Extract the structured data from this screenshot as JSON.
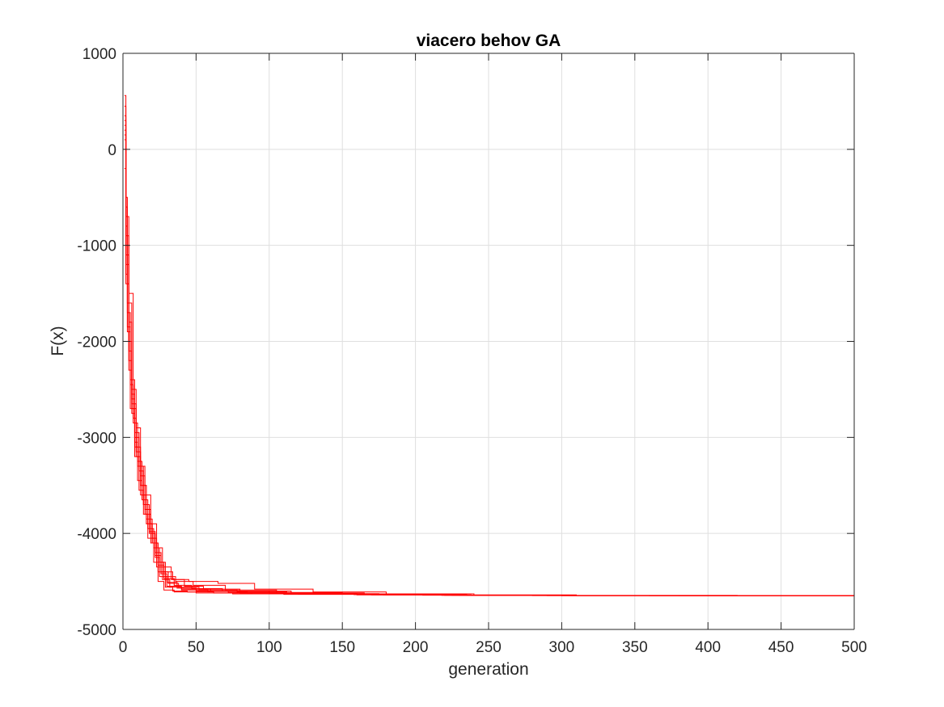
{
  "chart_data": {
    "type": "line",
    "title": "viacero behov GA",
    "xlabel": "generation",
    "ylabel": "F(x)",
    "xlim": [
      0,
      500
    ],
    "ylim": [
      -5000,
      1000
    ],
    "xticks": [
      0,
      50,
      100,
      150,
      200,
      250,
      300,
      350,
      400,
      450,
      500
    ],
    "yticks": [
      -5000,
      -4000,
      -3000,
      -2000,
      -1000,
      0,
      1000
    ],
    "xtick_labels": [
      "0",
      "50",
      "100",
      "150",
      "200",
      "250",
      "300",
      "350",
      "400",
      "450",
      "500"
    ],
    "ytick_labels": [
      "-5000",
      "-4000",
      "-3000",
      "-2000",
      "-1000",
      "0",
      "1000"
    ],
    "grid": true,
    "line_color": "#ff0000",
    "grid_color": "#dfdfdf",
    "axis_color": "#262626",
    "series": [
      {
        "x": [
          1,
          2,
          4,
          6,
          8,
          10,
          14,
          18,
          22,
          25,
          30,
          40,
          60,
          80,
          120,
          170,
          230,
          300,
          400,
          500
        ],
        "values": [
          560,
          -1100,
          -2000,
          -2600,
          -3100,
          -3300,
          -3700,
          -4000,
          -4250,
          -4450,
          -4550,
          -4580,
          -4600,
          -4620,
          -4630,
          -4640,
          -4645,
          -4648,
          -4650,
          -4650
        ]
      },
      {
        "x": [
          1,
          2,
          4,
          6,
          9,
          12,
          15,
          19,
          23,
          27,
          33,
          45,
          65,
          90,
          130,
          180,
          240,
          310,
          420,
          500
        ],
        "values": [
          300,
          -900,
          -1800,
          -2500,
          -2900,
          -3400,
          -3600,
          -3900,
          -4150,
          -4350,
          -4480,
          -4500,
          -4520,
          -4580,
          -4610,
          -4630,
          -4640,
          -4646,
          -4650,
          -4650
        ]
      },
      {
        "x": [
          1,
          2,
          3,
          5,
          8,
          11,
          14,
          17,
          21,
          24,
          28,
          35,
          50,
          75,
          110,
          160,
          220,
          280,
          380,
          500
        ],
        "values": [
          100,
          -1300,
          -1900,
          -2700,
          -3200,
          -3550,
          -3800,
          -4050,
          -4300,
          -4500,
          -4590,
          -4610,
          -4620,
          -4630,
          -4635,
          -4640,
          -4645,
          -4648,
          -4650,
          -4650
        ]
      },
      {
        "x": [
          1,
          2,
          4,
          7,
          9,
          12,
          16,
          20,
          24,
          28,
          34,
          42,
          55,
          80,
          115,
          165,
          225,
          300,
          400,
          500
        ],
        "values": [
          200,
          -700,
          -1500,
          -2800,
          -3100,
          -3500,
          -3850,
          -4100,
          -4300,
          -4400,
          -4480,
          -4550,
          -4580,
          -4600,
          -4620,
          -4632,
          -4642,
          -4647,
          -4650,
          -4650
        ]
      },
      {
        "x": [
          1,
          2,
          4,
          6,
          8,
          11,
          15,
          19,
          22,
          26,
          31,
          38,
          52,
          78,
          112,
          160,
          225,
          300,
          400,
          500
        ],
        "values": [
          0,
          -1200,
          -2200,
          -2750,
          -3000,
          -3300,
          -3750,
          -4000,
          -4200,
          -4400,
          -4520,
          -4560,
          -4590,
          -4610,
          -4625,
          -4636,
          -4644,
          -4648,
          -4650,
          -4650
        ]
      },
      {
        "x": [
          1,
          2,
          3,
          5,
          8,
          10,
          13,
          17,
          21,
          25,
          29,
          36,
          48,
          70,
          105,
          150,
          210,
          270,
          380,
          500
        ],
        "values": [
          350,
          -500,
          -1700,
          -2400,
          -3050,
          -3450,
          -3650,
          -3950,
          -4150,
          -4300,
          -4450,
          -4500,
          -4540,
          -4590,
          -4615,
          -4630,
          -4642,
          -4647,
          -4650,
          -4650
        ]
      },
      {
        "x": [
          1,
          2,
          4,
          6,
          9,
          12,
          16,
          20,
          23,
          27,
          32,
          40,
          58,
          85,
          125,
          175,
          235,
          310,
          410,
          500
        ],
        "values": [
          150,
          -1000,
          -2100,
          -2650,
          -3150,
          -3500,
          -3900,
          -4050,
          -4350,
          -4480,
          -4560,
          -4590,
          -4605,
          -4618,
          -4628,
          -4638,
          -4645,
          -4648,
          -4650,
          -4650
        ]
      },
      {
        "x": [
          1,
          2,
          3,
          6,
          8,
          11,
          14,
          18,
          22,
          26,
          30,
          37,
          50,
          72,
          108,
          158,
          218,
          290,
          390,
          500
        ],
        "values": [
          450,
          -800,
          -1600,
          -2550,
          -2950,
          -3350,
          -3700,
          -3980,
          -4230,
          -4420,
          -4510,
          -4570,
          -4600,
          -4615,
          -4627,
          -4637,
          -4644,
          -4648,
          -4650,
          -4650
        ]
      },
      {
        "x": [
          1,
          2,
          4,
          6,
          9,
          12,
          15,
          19,
          24,
          29,
          34,
          44,
          62,
          88,
          128,
          178,
          238,
          305,
          405,
          500
        ],
        "values": [
          -200,
          -1400,
          -2300,
          -2700,
          -3200,
          -3600,
          -3800,
          -4100,
          -4400,
          -4560,
          -4600,
          -4610,
          -4620,
          -4628,
          -4634,
          -4640,
          -4645,
          -4648,
          -4650,
          -4650
        ]
      },
      {
        "x": [
          1,
          2,
          3,
          5,
          7,
          10,
          13,
          16,
          20,
          24,
          28,
          35,
          47,
          68,
          100,
          145,
          205,
          265,
          360,
          500
        ],
        "values": [
          250,
          -600,
          -1850,
          -2450,
          -2850,
          -3250,
          -3600,
          -3900,
          -4100,
          -4330,
          -4470,
          -4540,
          -4575,
          -4600,
          -4620,
          -4633,
          -4643,
          -4647,
          -4650,
          -4650
        ]
      }
    ]
  }
}
